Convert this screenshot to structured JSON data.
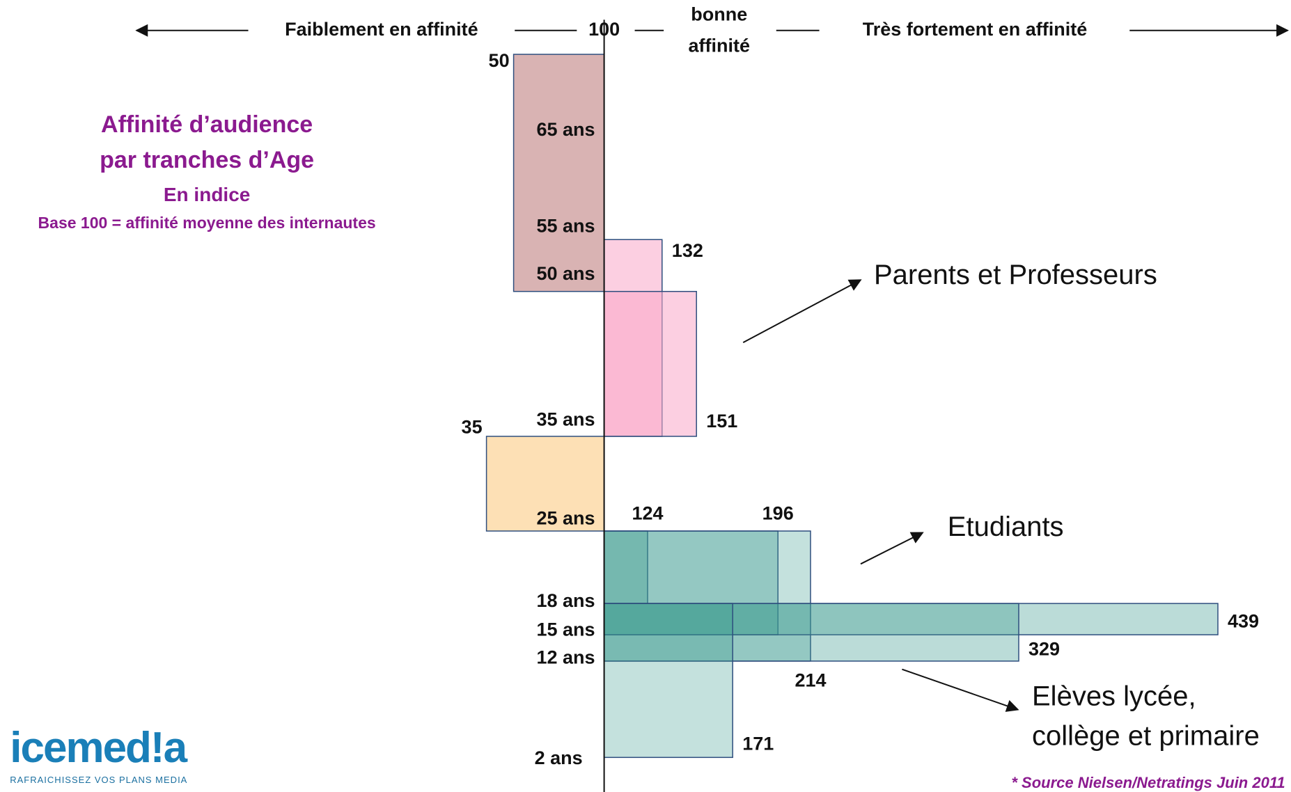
{
  "chart_data": {
    "type": "bar",
    "header": {
      "left": "Faiblement en affinité",
      "middle": [
        "bonne",
        "affinité"
      ],
      "right": "Très fortement en affinité"
    },
    "title": [
      "Affinité d’audience",
      "par tranches d’Age"
    ],
    "subtitle": [
      "En indice",
      "Base 100 = affinité moyenne des internautes"
    ],
    "age_labels": [
      "65 ans",
      "55 ans",
      "50 ans",
      "35 ans",
      "25 ans",
      "18 ans",
      "15 ans",
      "12 ans",
      "2 ans"
    ],
    "values": [
      50,
      132,
      151,
      35,
      124,
      196,
      214,
      439,
      329,
      171
    ],
    "colors": [
      "#d9b3b3",
      "#f9a8c8",
      "#f9a8c8",
      "#fde0b5",
      "#3c9a90",
      "#3c9a90",
      "#3c9a90",
      "#3c9a90",
      "#3c9a90",
      "#3c9a90"
    ],
    "xlim": [
      0,
      450
    ],
    "xticks": [
      100
    ],
    "annotations": [
      [
        "Parents et Professeurs"
      ],
      [
        "Etudiants"
      ],
      [
        "Elèves lycée,",
        "collège et primaire"
      ]
    ],
    "source": "* Source Nielsen/Netratings Juin 2011",
    "logo": {
      "name": "icemed!a",
      "tagline": "RAFRAICHISSEZ VOS PLANS MEDIA"
    }
  }
}
